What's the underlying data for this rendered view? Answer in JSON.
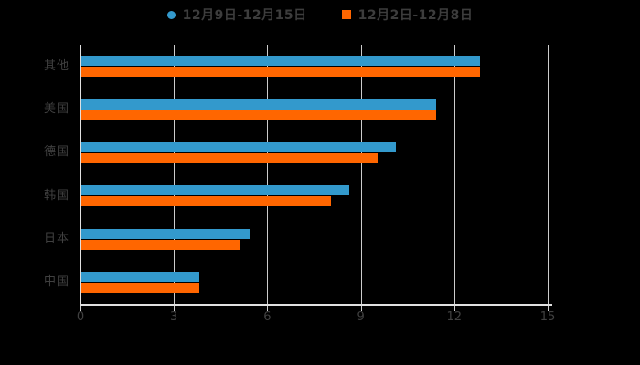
{
  "background": "#000000",
  "colors": {
    "series_blue": "#3399cc",
    "series_orange": "#ff6600",
    "grid_line": "#cccccc",
    "axis_line": "#e0e0e0",
    "text": "#404040",
    "legend_text": "#3d3d3d"
  },
  "legend": {
    "items": [
      {
        "label": "12月9日-12月15日",
        "marker": "circle",
        "color": "#3399cc"
      },
      {
        "label": "12月2日-12月8日",
        "marker": "square",
        "color": "#ff6600"
      }
    ]
  },
  "chart_data": {
    "type": "bar",
    "orientation": "horizontal",
    "title": "",
    "xlabel": "",
    "ylabel": "",
    "categories": [
      "其他",
      "美国",
      "德国",
      "韩国",
      "日本",
      "中国"
    ],
    "series": [
      {
        "name": "12月9日-12月15日",
        "color": "#3399cc",
        "values": [
          12.8,
          11.4,
          10.1,
          8.6,
          5.4,
          3.8
        ]
      },
      {
        "name": "12月2日-12月8日",
        "color": "#ff6600",
        "values": [
          12.8,
          11.4,
          9.5,
          8.0,
          5.1,
          3.8
        ]
      }
    ],
    "xlim": [
      0,
      15
    ],
    "x_ticks": [
      0,
      3,
      6,
      9,
      12,
      15
    ],
    "grid": true,
    "legend_position": "top"
  }
}
